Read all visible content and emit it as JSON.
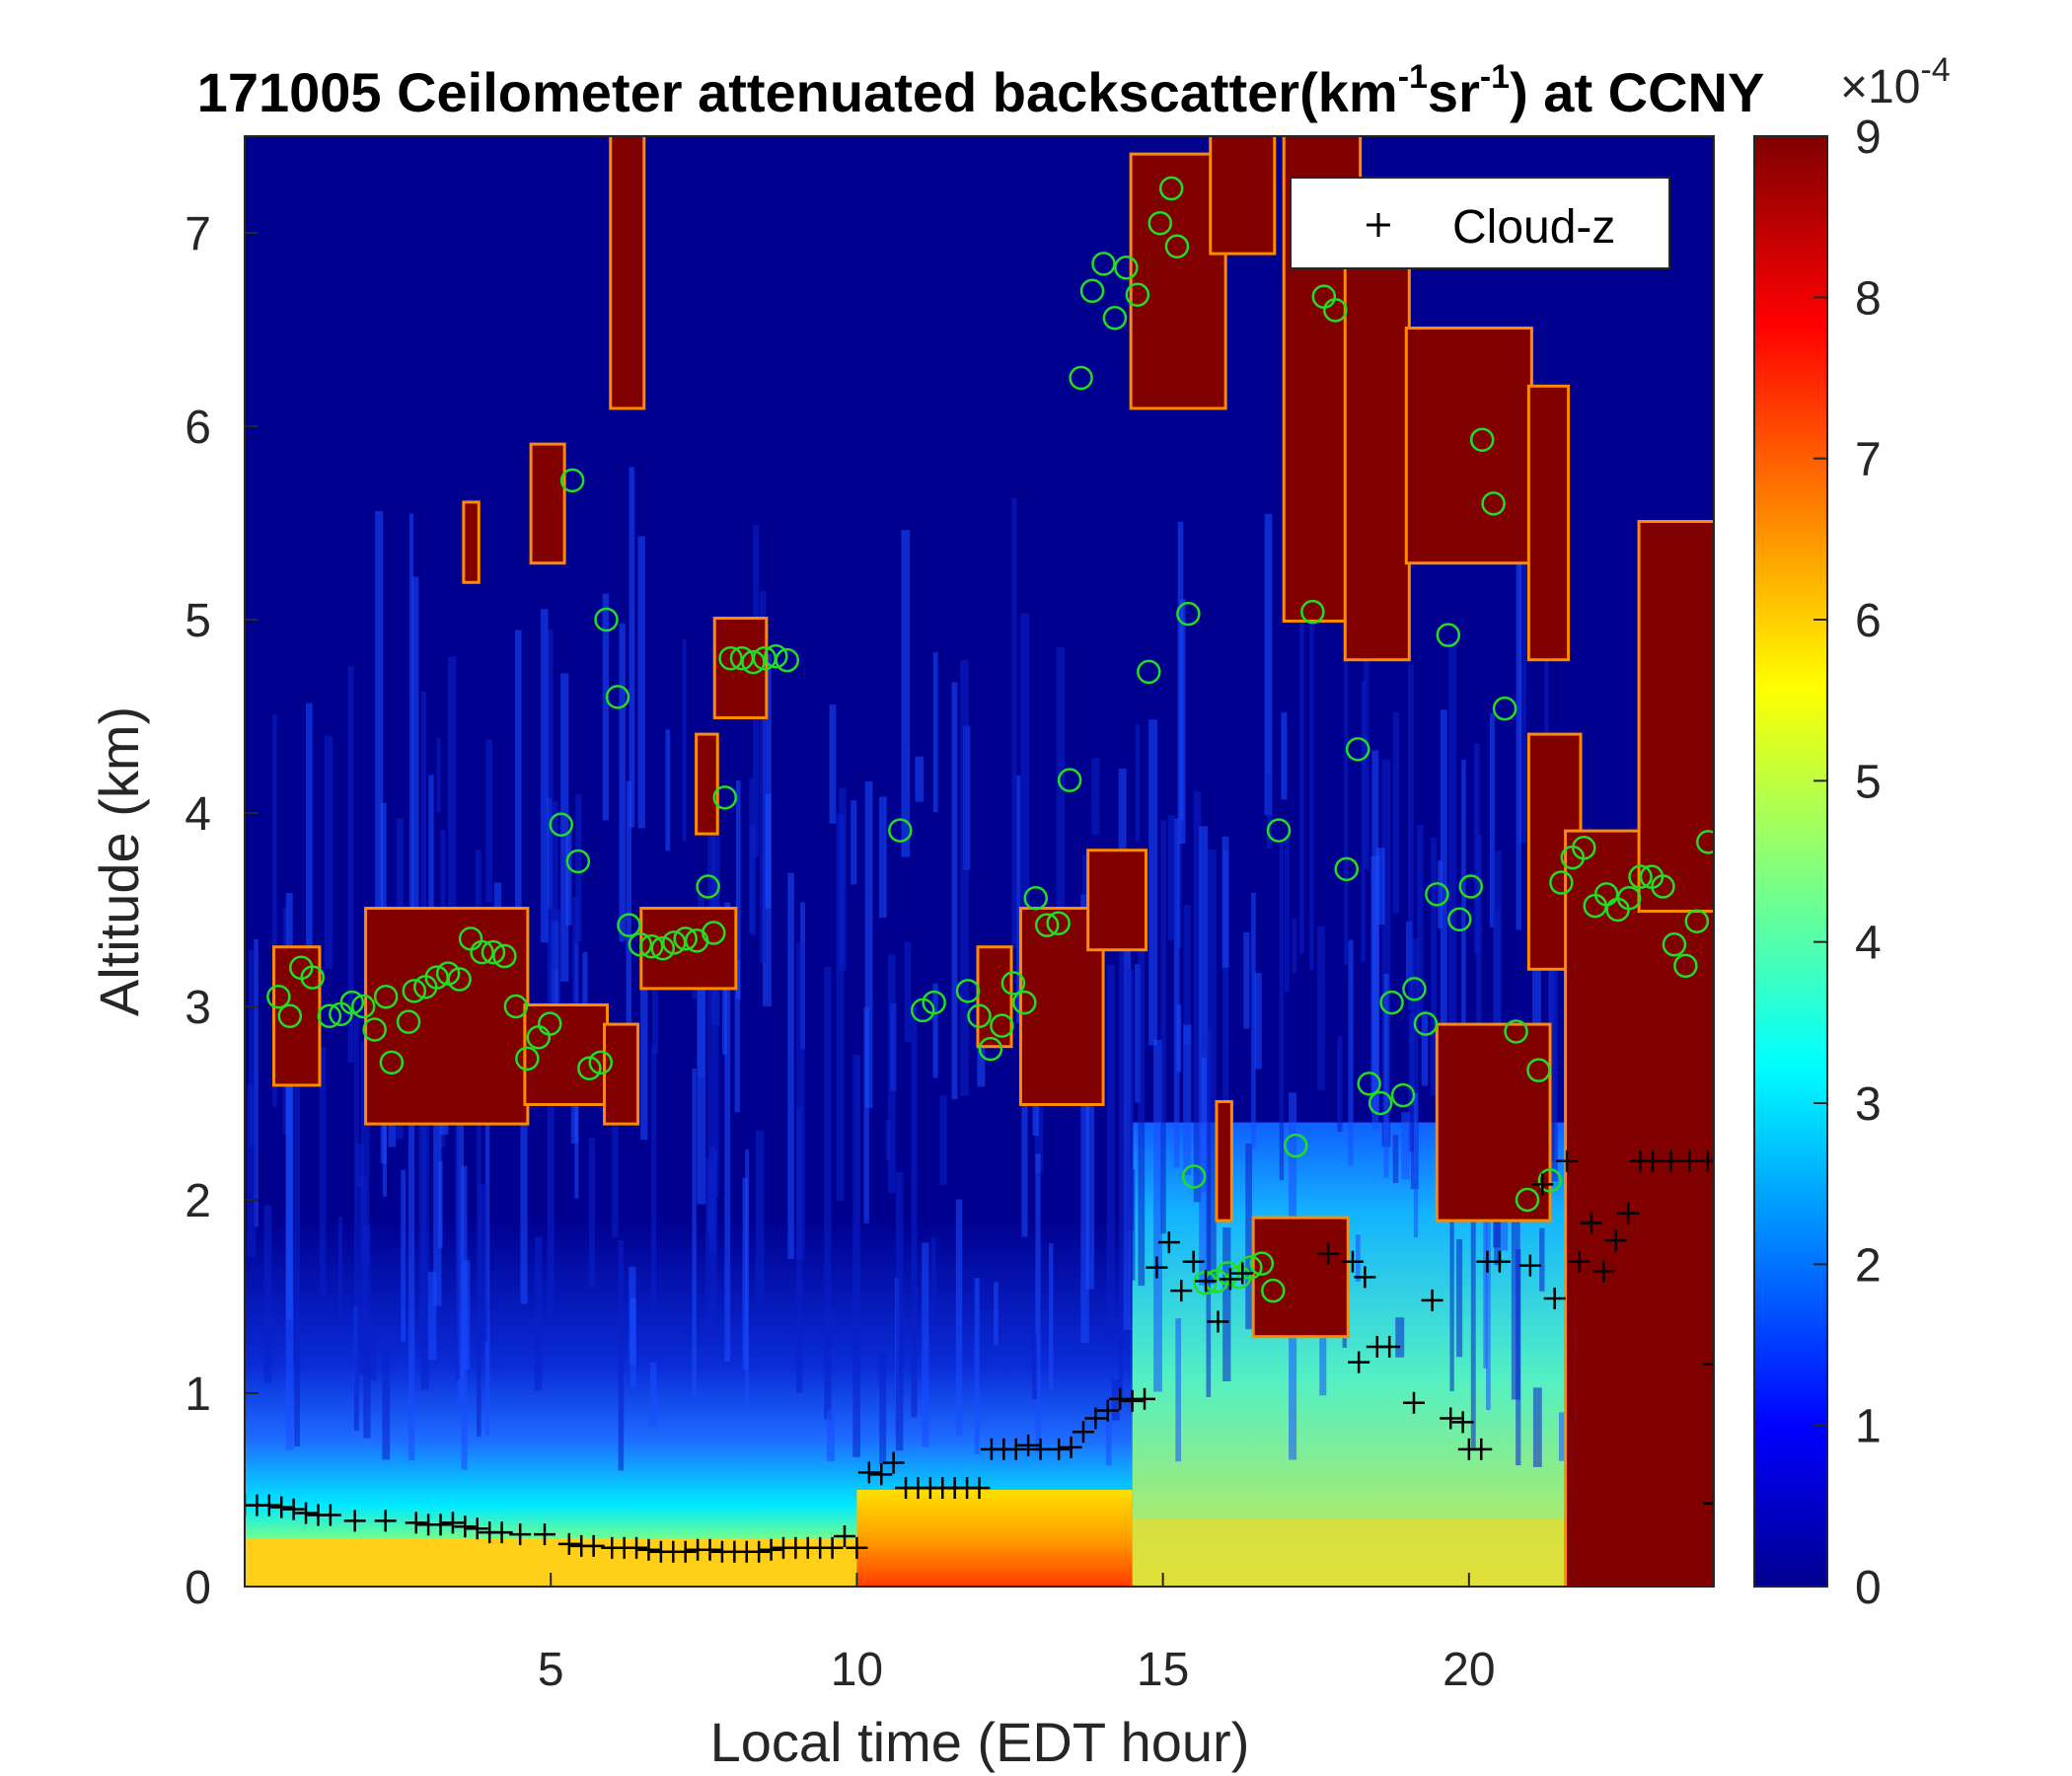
{
  "chart_data": {
    "type": "heatmap",
    "title_parts": {
      "prefix": "171005 Ceilometer attenuated backscatter(km",
      "sup1": "-1",
      "middle": "sr",
      "sup2": "-1",
      "suffix": ") at CCNY"
    },
    "xlabel": "Local time (EDT hour)",
    "ylabel": "Altitude (km)",
    "xlim": [
      0,
      24
    ],
    "ylim": [
      0,
      7.5
    ],
    "xticks": [
      5,
      10,
      15,
      20
    ],
    "yticks": [
      0,
      1,
      2,
      3,
      4,
      5,
      6,
      7
    ],
    "colorbar": {
      "range": [
        0,
        9
      ],
      "ticks": [
        0,
        1,
        2,
        3,
        4,
        5,
        6,
        7,
        8,
        9
      ],
      "exponent_base": "×10",
      "exponent": "-4",
      "colormap": "jet"
    },
    "legend": {
      "position": "top-right",
      "entries": [
        {
          "marker": "+",
          "label": "Cloud-z"
        }
      ]
    },
    "colors": {
      "background_low": "#00008f",
      "saturated": "#800000",
      "cloud_z_marker": "#000000",
      "circle_marker": "#22dd22"
    },
    "cloud_z": [
      [
        0.0,
        0.42
      ],
      [
        0.2,
        0.42
      ],
      [
        0.4,
        0.42
      ],
      [
        0.6,
        0.41
      ],
      [
        0.8,
        0.4
      ],
      [
        1.0,
        0.38
      ],
      [
        1.2,
        0.37
      ],
      [
        1.4,
        0.37
      ],
      [
        1.8,
        0.34
      ],
      [
        2.3,
        0.34
      ],
      [
        2.8,
        0.33
      ],
      [
        3.0,
        0.32
      ],
      [
        3.2,
        0.32
      ],
      [
        3.4,
        0.33
      ],
      [
        3.6,
        0.31
      ],
      [
        3.8,
        0.3
      ],
      [
        4.0,
        0.28
      ],
      [
        4.2,
        0.28
      ],
      [
        4.5,
        0.27
      ],
      [
        4.9,
        0.27
      ],
      [
        5.3,
        0.22
      ],
      [
        5.5,
        0.21
      ],
      [
        5.7,
        0.21
      ],
      [
        6.0,
        0.2
      ],
      [
        6.2,
        0.2
      ],
      [
        6.4,
        0.2
      ],
      [
        6.6,
        0.19
      ],
      [
        6.8,
        0.18
      ],
      [
        7.0,
        0.18
      ],
      [
        7.2,
        0.18
      ],
      [
        7.4,
        0.19
      ],
      [
        7.6,
        0.19
      ],
      [
        7.8,
        0.18
      ],
      [
        8.0,
        0.18
      ],
      [
        8.2,
        0.18
      ],
      [
        8.4,
        0.18
      ],
      [
        8.6,
        0.19
      ],
      [
        8.8,
        0.2
      ],
      [
        9.0,
        0.2
      ],
      [
        9.2,
        0.2
      ],
      [
        9.4,
        0.2
      ],
      [
        9.6,
        0.2
      ],
      [
        9.8,
        0.26
      ],
      [
        10.0,
        0.2
      ],
      [
        10.2,
        0.59
      ],
      [
        10.4,
        0.58
      ],
      [
        10.6,
        0.64
      ],
      [
        10.8,
        0.51
      ],
      [
        11.0,
        0.51
      ],
      [
        11.2,
        0.51
      ],
      [
        11.4,
        0.51
      ],
      [
        11.6,
        0.51
      ],
      [
        11.8,
        0.51
      ],
      [
        12.0,
        0.51
      ],
      [
        12.2,
        0.71
      ],
      [
        12.4,
        0.71
      ],
      [
        12.6,
        0.71
      ],
      [
        12.8,
        0.73
      ],
      [
        13.0,
        0.71
      ],
      [
        13.3,
        0.71
      ],
      [
        13.5,
        0.72
      ],
      [
        13.7,
        0.8
      ],
      [
        13.9,
        0.87
      ],
      [
        14.1,
        0.91
      ],
      [
        14.3,
        0.97
      ],
      [
        14.5,
        0.96
      ],
      [
        14.7,
        0.97
      ],
      [
        14.9,
        1.65
      ],
      [
        15.1,
        1.78
      ],
      [
        15.3,
        1.53
      ],
      [
        15.5,
        1.68
      ],
      [
        15.7,
        1.58
      ],
      [
        15.9,
        1.37
      ],
      [
        16.1,
        1.59
      ],
      [
        16.3,
        1.62
      ],
      [
        17.7,
        1.72
      ],
      [
        18.1,
        1.68
      ],
      [
        18.3,
        1.6
      ],
      [
        18.2,
        1.16
      ],
      [
        18.5,
        1.24
      ],
      [
        18.7,
        1.24
      ],
      [
        19.1,
        0.95
      ],
      [
        19.4,
        1.48
      ],
      [
        19.7,
        0.87
      ],
      [
        19.9,
        0.85
      ],
      [
        20.0,
        0.71
      ],
      [
        20.2,
        0.71
      ],
      [
        20.3,
        1.68
      ],
      [
        20.5,
        1.68
      ],
      [
        21.0,
        1.66
      ],
      [
        21.2,
        2.08
      ],
      [
        21.4,
        1.49
      ],
      [
        21.6,
        2.2
      ],
      [
        21.8,
        1.68
      ],
      [
        22.0,
        1.88
      ],
      [
        22.2,
        1.63
      ],
      [
        22.4,
        1.79
      ],
      [
        22.6,
        1.93
      ],
      [
        22.8,
        2.2
      ],
      [
        23.0,
        2.2
      ],
      [
        23.3,
        2.2
      ],
      [
        23.6,
        2.2
      ],
      [
        23.9,
        2.2
      ],
      [
        24.0,
        1.15
      ],
      [
        24.0,
        0.43
      ]
    ],
    "cloud_circles": [
      [
        0.6,
        3.05
      ],
      [
        0.8,
        2.95
      ],
      [
        1.0,
        3.2
      ],
      [
        1.2,
        3.15
      ],
      [
        1.5,
        2.95
      ],
      [
        1.7,
        2.96
      ],
      [
        1.9,
        3.02
      ],
      [
        2.1,
        3.0
      ],
      [
        2.3,
        2.88
      ],
      [
        2.5,
        3.05
      ],
      [
        2.6,
        2.71
      ],
      [
        2.9,
        2.92
      ],
      [
        3.0,
        3.08
      ],
      [
        3.2,
        3.1
      ],
      [
        3.4,
        3.15
      ],
      [
        3.6,
        3.17
      ],
      [
        3.8,
        3.14
      ],
      [
        4.0,
        3.35
      ],
      [
        4.2,
        3.28
      ],
      [
        4.4,
        3.28
      ],
      [
        4.6,
        3.26
      ],
      [
        4.8,
        3.0
      ],
      [
        5.0,
        2.73
      ],
      [
        5.2,
        2.84
      ],
      [
        5.4,
        2.91
      ],
      [
        5.6,
        3.94
      ],
      [
        5.8,
        5.72
      ],
      [
        5.9,
        3.75
      ],
      [
        6.1,
        2.68
      ],
      [
        6.3,
        2.71
      ],
      [
        6.4,
        5.0
      ],
      [
        6.6,
        4.6
      ],
      [
        6.8,
        3.42
      ],
      [
        7.0,
        3.32
      ],
      [
        7.2,
        3.31
      ],
      [
        7.4,
        3.3
      ],
      [
        7.6,
        3.33
      ],
      [
        7.8,
        3.35
      ],
      [
        8.0,
        3.34
      ],
      [
        8.2,
        3.62
      ],
      [
        8.3,
        3.38
      ],
      [
        8.5,
        4.08
      ],
      [
        8.6,
        4.8
      ],
      [
        8.8,
        4.8
      ],
      [
        9.0,
        4.78
      ],
      [
        9.2,
        4.8
      ],
      [
        9.4,
        4.81
      ],
      [
        9.6,
        4.79
      ],
      [
        11.6,
        3.91
      ],
      [
        12.0,
        2.98
      ],
      [
        12.2,
        3.02
      ],
      [
        12.8,
        3.08
      ],
      [
        13.0,
        2.95
      ],
      [
        13.2,
        2.78
      ],
      [
        13.4,
        2.9
      ],
      [
        13.6,
        3.12
      ],
      [
        13.8,
        3.02
      ],
      [
        14.0,
        3.56
      ],
      [
        14.2,
        3.42
      ],
      [
        14.4,
        3.43
      ],
      [
        14.6,
        4.17
      ],
      [
        14.8,
        6.25
      ],
      [
        15.0,
        6.7
      ],
      [
        15.2,
        6.84
      ],
      [
        15.4,
        6.56
      ],
      [
        15.6,
        6.82
      ],
      [
        15.8,
        6.68
      ],
      [
        16.0,
        4.73
      ],
      [
        16.2,
        7.05
      ],
      [
        16.4,
        7.23
      ],
      [
        16.5,
        6.93
      ],
      [
        16.7,
        5.03
      ],
      [
        16.8,
        2.12
      ],
      [
        17.0,
        1.57
      ],
      [
        17.2,
        1.58
      ],
      [
        17.4,
        1.62
      ],
      [
        17.6,
        1.6
      ],
      [
        17.8,
        1.65
      ],
      [
        18.0,
        1.67
      ],
      [
        18.2,
        1.53
      ],
      [
        18.3,
        3.91
      ],
      [
        18.6,
        2.28
      ],
      [
        18.9,
        5.04
      ],
      [
        19.1,
        6.67
      ],
      [
        19.3,
        6.6
      ],
      [
        19.5,
        3.71
      ],
      [
        19.7,
        4.33
      ],
      [
        19.9,
        2.6
      ],
      [
        20.1,
        2.5
      ],
      [
        20.3,
        3.02
      ],
      [
        20.5,
        2.54
      ],
      [
        20.7,
        3.09
      ],
      [
        20.9,
        2.91
      ],
      [
        21.1,
        3.58
      ],
      [
        21.3,
        4.92
      ],
      [
        21.5,
        3.45
      ],
      [
        21.7,
        3.62
      ],
      [
        21.9,
        5.93
      ],
      [
        22.1,
        5.6
      ],
      [
        22.3,
        4.54
      ],
      [
        22.5,
        2.87
      ],
      [
        22.7,
        2.0
      ],
      [
        22.9,
        2.67
      ],
      [
        23.1,
        2.1
      ],
      [
        23.3,
        3.64
      ],
      [
        23.5,
        3.77
      ],
      [
        23.7,
        3.82
      ],
      [
        23.9,
        3.52
      ],
      [
        24.1,
        3.58
      ],
      [
        24.3,
        3.5
      ],
      [
        24.5,
        3.56
      ],
      [
        24.7,
        3.67
      ],
      [
        24.9,
        3.67
      ],
      [
        25.1,
        3.62
      ],
      [
        25.3,
        3.32
      ],
      [
        25.5,
        3.21
      ],
      [
        25.7,
        3.44
      ],
      [
        25.9,
        3.85
      ]
    ],
    "saturated_layers": [
      [
        0.5,
        1.2,
        2.6,
        3.3
      ],
      [
        2.0,
        4.6,
        2.4,
        3.5
      ],
      [
        4.6,
        5.9,
        2.5,
        3.0
      ],
      [
        5.9,
        6.4,
        2.4,
        2.9
      ],
      [
        4.7,
        5.2,
        5.3,
        5.9
      ],
      [
        3.6,
        3.8,
        5.2,
        5.6
      ],
      [
        6.0,
        6.5,
        6.1,
        7.5
      ],
      [
        6.5,
        8.0,
        3.1,
        3.5
      ],
      [
        7.4,
        7.7,
        3.9,
        4.4
      ],
      [
        7.7,
        8.5,
        4.5,
        5.0
      ],
      [
        12.0,
        12.5,
        2.8,
        3.3
      ],
      [
        12.7,
        14.0,
        2.5,
        3.5
      ],
      [
        13.8,
        14.7,
        3.3,
        3.8
      ],
      [
        14.5,
        16.0,
        6.1,
        7.4
      ],
      [
        15.8,
        16.8,
        6.9,
        7.5
      ],
      [
        15.9,
        16.1,
        1.9,
        2.5
      ],
      [
        16.5,
        18.0,
        1.3,
        1.9
      ],
      [
        17.0,
        18.2,
        5.0,
        7.5
      ],
      [
        18.0,
        19.0,
        4.8,
        6.9
      ],
      [
        19.0,
        21.0,
        5.3,
        6.5
      ],
      [
        21.0,
        21.6,
        4.8,
        6.2
      ],
      [
        19.5,
        21.3,
        1.9,
        2.9
      ],
      [
        21.0,
        21.8,
        3.2,
        4.4
      ],
      [
        21.6,
        24.0,
        0.0,
        3.9
      ],
      [
        22.8,
        24.0,
        3.5,
        5.5
      ]
    ]
  }
}
